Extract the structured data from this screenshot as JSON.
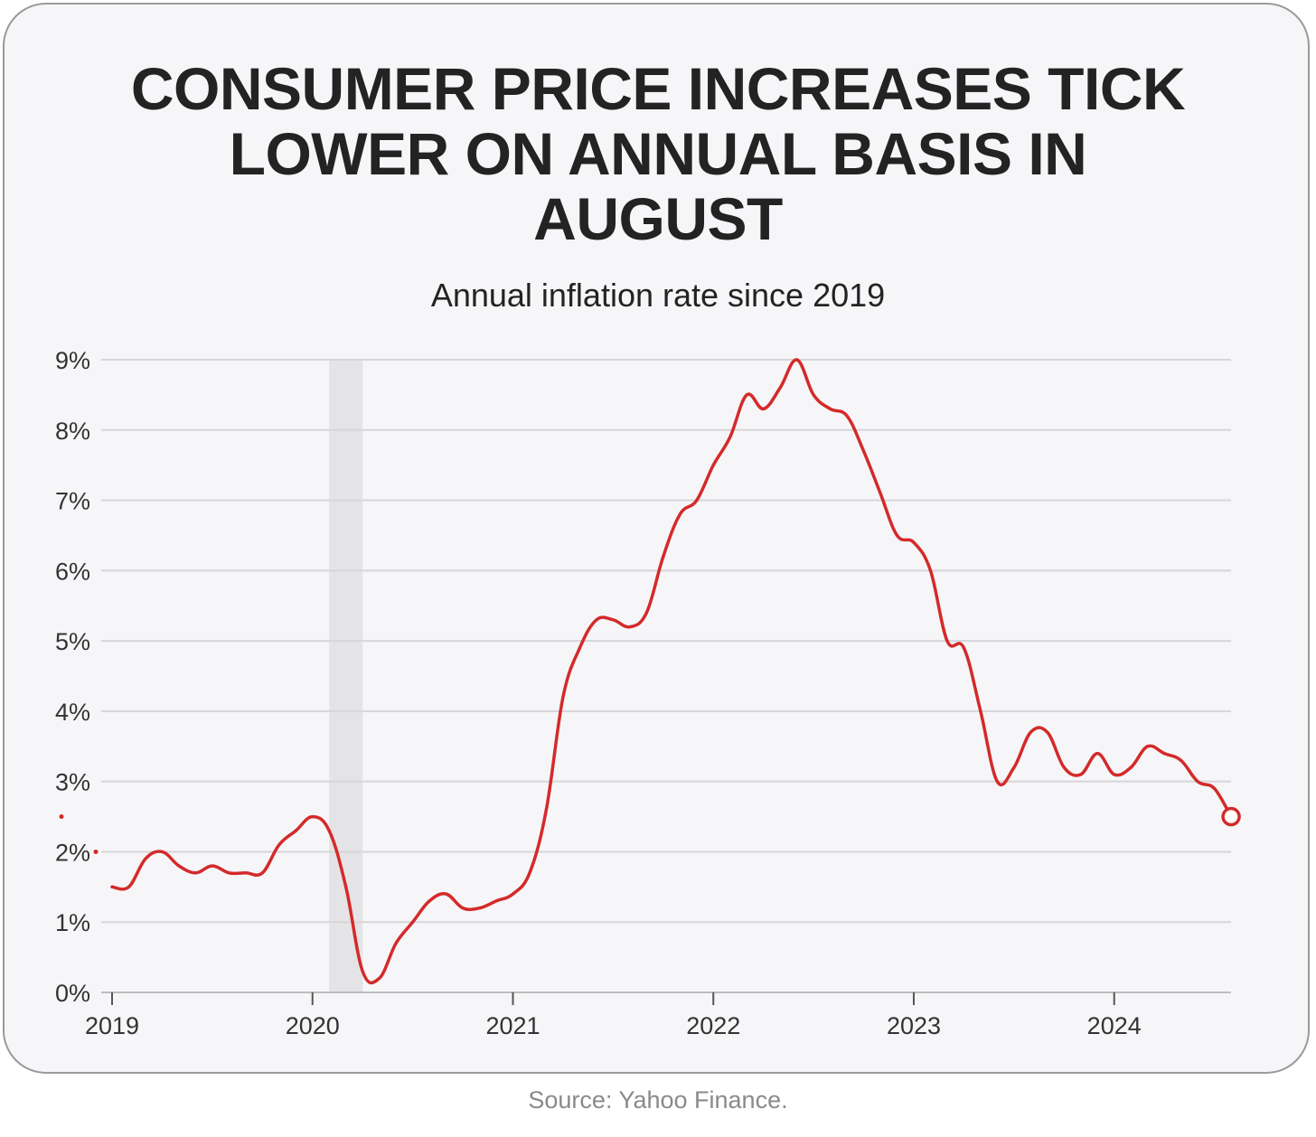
{
  "chart_data": {
    "type": "line",
    "title": "CONSUMER PRICE INCREASES TICK LOWER ON ANNUAL BASIS IN AUGUST",
    "title_lines": [
      "CONSUMER PRICE INCREASES TICK",
      "LOWER ON ANNUAL BASIS IN",
      "AUGUST"
    ],
    "subtitle": "Annual inflation rate since 2019",
    "source": "Source: Yahoo Finance.",
    "xlabel": "",
    "ylabel": "",
    "x_tick_labels": [
      "2019",
      "2020",
      "2021",
      "2022",
      "2023",
      "2024"
    ],
    "y_tick_labels": [
      "0%",
      "1%",
      "2%",
      "3%",
      "4%",
      "5%",
      "6%",
      "7%",
      "8%",
      "9%"
    ],
    "ylim": [
      0,
      9
    ],
    "xlim": [
      2019.0,
      2024.583
    ],
    "grid": true,
    "line_color": "#d42a2a",
    "shaded_period": {
      "start": 2020.083,
      "end": 2020.25,
      "color": "#e4e4e6"
    },
    "series": [
      {
        "name": "Annual inflation rate",
        "start_year": 2019,
        "start_month": 1,
        "values": [
          1.5,
          1.5,
          1.9,
          2.0,
          1.8,
          1.7,
          1.8,
          1.7,
          1.7,
          1.7,
          2.1,
          2.3,
          2.5,
          2.3,
          1.5,
          0.3,
          0.2,
          0.7,
          1.0,
          1.3,
          1.4,
          1.2,
          1.2,
          1.3,
          1.4,
          1.7,
          2.6,
          4.2,
          4.9,
          5.3,
          5.3,
          5.2,
          5.4,
          6.2,
          6.8,
          7.0,
          7.5,
          7.9,
          8.5,
          8.3,
          8.6,
          9.0,
          8.5,
          8.3,
          8.2,
          7.7,
          7.1,
          6.5,
          6.4,
          6.0,
          5.0,
          4.9,
          4.0,
          3.0,
          3.2,
          3.7,
          3.7,
          3.2,
          3.1,
          3.4,
          3.1,
          3.2,
          3.5,
          3.4,
          3.3,
          3.0,
          2.9,
          2.5
        ]
      }
    ],
    "markers_left": [
      2.5,
      2.0
    ]
  }
}
